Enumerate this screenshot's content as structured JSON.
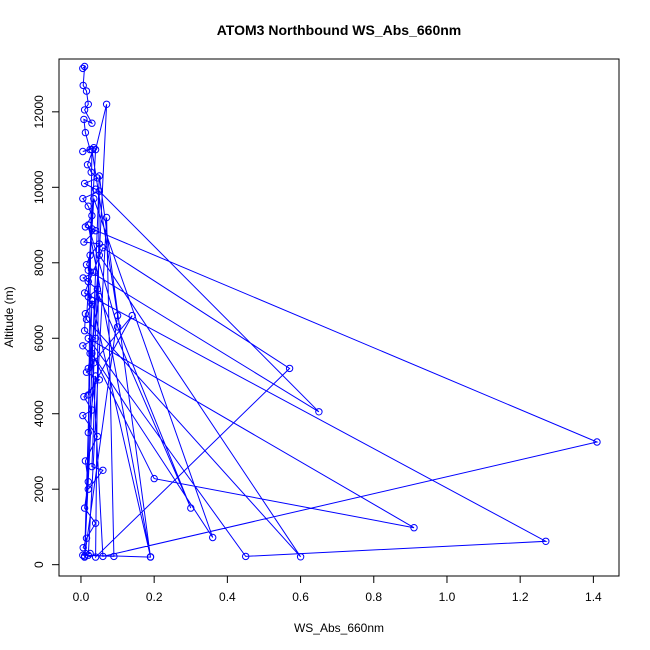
{
  "chart_data": {
    "type": "line",
    "title": "ATOM3 Northbound WS_Abs_660nm",
    "xlabel": "WS_Abs_660nm",
    "ylabel": "Altitude (m)",
    "xlim": [
      -0.06,
      1.47
    ],
    "ylim": [
      -300,
      13400
    ],
    "xticks": [
      0.0,
      0.2,
      0.4,
      0.6,
      0.8,
      1.0,
      1.2,
      1.4
    ],
    "xtick_labels": [
      "0.0",
      "0.2",
      "0.4",
      "0.6",
      "0.8",
      "1.0",
      "1.2",
      "1.4"
    ],
    "yticks": [
      0,
      2000,
      4000,
      6000,
      8000,
      10000,
      12000
    ],
    "ytick_labels": [
      "0",
      "2000",
      "4000",
      "6000",
      "8000",
      "10000",
      "12000"
    ],
    "grid": false,
    "legend": "none",
    "color": "#0000ff",
    "series": [
      {
        "points": [
          [
            0.005,
            13150
          ],
          [
            0.01,
            13200
          ],
          [
            0.006,
            12700
          ],
          [
            0.015,
            12550
          ],
          [
            0.02,
            12200
          ],
          [
            0.01,
            12050
          ],
          [
            0.03,
            11700
          ],
          [
            0.008,
            11800
          ],
          [
            0.012,
            11450
          ],
          [
            0.025,
            11000
          ],
          [
            0.005,
            10950
          ],
          [
            0.035,
            11050
          ],
          [
            0.018,
            10600
          ],
          [
            0.028,
            10400
          ],
          [
            0.045,
            10250
          ],
          [
            0.01,
            10100
          ],
          [
            0.04,
            9950
          ],
          [
            0.05,
            9900
          ],
          [
            0.005,
            9700
          ],
          [
            0.02,
            9500
          ],
          [
            0.03,
            9250
          ],
          [
            0.012,
            8950
          ],
          [
            0.04,
            8850
          ],
          [
            0.008,
            8550
          ],
          [
            0.05,
            8500
          ],
          [
            0.025,
            8200
          ],
          [
            0.015,
            7950
          ],
          [
            0.035,
            7750
          ],
          [
            0.006,
            7600
          ],
          [
            0.045,
            7300
          ],
          [
            0.02,
            7100
          ],
          [
            0.03,
            6900
          ],
          [
            0.012,
            6650
          ],
          [
            0.01,
            6200
          ],
          [
            0.04,
            6000
          ],
          [
            0.005,
            5800
          ],
          [
            0.025,
            5600
          ],
          [
            0.035,
            5350
          ],
          [
            0.015,
            5100
          ],
          [
            0.05,
            4900
          ],
          [
            0.008,
            4450
          ],
          [
            0.03,
            4100
          ],
          [
            0.005,
            3950
          ],
          [
            0.045,
            3400
          ],
          [
            0.012,
            2750
          ],
          [
            0.02,
            2200
          ],
          [
            0.01,
            1500
          ],
          [
            0.04,
            1100
          ],
          [
            0.015,
            700
          ],
          [
            0.006,
            450
          ],
          [
            0.025,
            300
          ],
          [
            0.005,
            250
          ],
          [
            0.09,
            220
          ],
          [
            0.07,
            9200
          ],
          [
            0.02,
            250
          ],
          [
            0.19,
            200
          ],
          [
            0.05,
            10300
          ],
          [
            0.01,
            230
          ],
          [
            0.07,
            12200
          ],
          [
            0.04,
            11000
          ],
          [
            0.02,
            7500
          ],
          [
            0.06,
            220
          ],
          [
            1.41,
            3250
          ],
          [
            0.03,
            8900
          ],
          [
            0.02,
            7800
          ],
          [
            0.65,
            4050
          ],
          [
            0.05,
            9900
          ],
          [
            0.04,
            200
          ],
          [
            0.57,
            5200
          ],
          [
            0.06,
            8400
          ],
          [
            0.01,
            7200
          ],
          [
            1.27,
            620
          ],
          [
            0.45,
            220
          ],
          [
            0.02,
            6000
          ],
          [
            0.91,
            980
          ],
          [
            0.2,
            2280
          ],
          [
            0.03,
            5600
          ],
          [
            0.36,
            720
          ],
          [
            0.035,
            9700
          ],
          [
            0.015,
            6500
          ],
          [
            0.6,
            210
          ],
          [
            0.05,
            8200
          ],
          [
            0.02,
            4500
          ],
          [
            0.14,
            6600
          ],
          [
            0.02,
            5200
          ],
          [
            0.05,
            7100
          ],
          [
            0.3,
            1500
          ],
          [
            0.1,
            6300
          ],
          [
            0.02,
            9000
          ],
          [
            0.19,
            210
          ],
          [
            0.03,
            7000
          ],
          [
            0.01,
            200
          ],
          [
            0.1,
            6600
          ],
          [
            0.03,
            11000
          ],
          [
            0.02,
            3500
          ],
          [
            0.04,
            5000
          ],
          [
            0.03,
            2600
          ],
          [
            0.06,
            2500
          ],
          [
            0.02,
            2000
          ]
        ]
      }
    ]
  }
}
